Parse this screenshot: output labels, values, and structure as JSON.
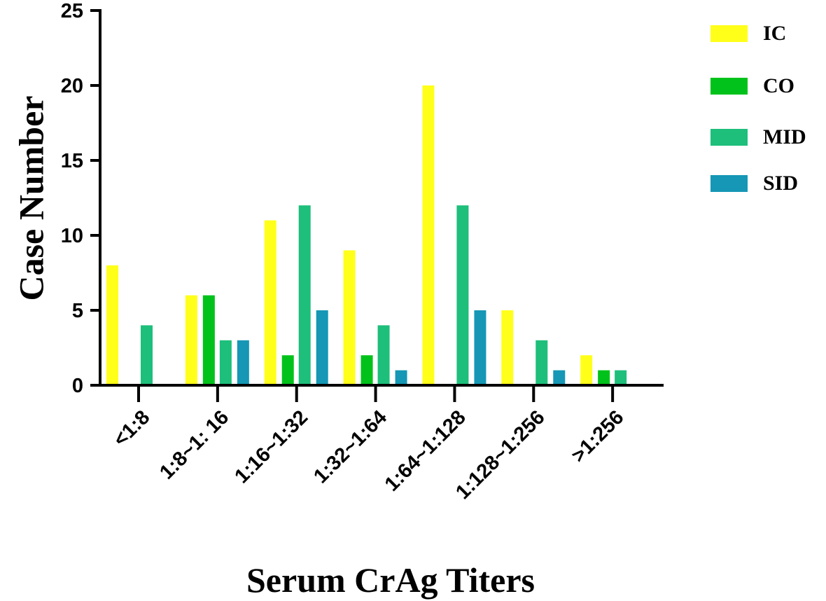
{
  "chart_data": {
    "type": "bar",
    "x_label": "Serum CrAg Titers",
    "y_label": "Case Number",
    "categories": [
      "<1:8",
      "1:8~1: 16",
      "1:16~1:32",
      "1:32~1:64",
      "1:64~1:128",
      "1:128~1:256",
      ">1:256"
    ],
    "series": [
      {
        "name": "IC",
        "color": "#ffff1a",
        "values": [
          8,
          6,
          11,
          9,
          20,
          5,
          2
        ]
      },
      {
        "name": "CO",
        "color": "#00c21a",
        "values": [
          0,
          6,
          2,
          2,
          0,
          0,
          1
        ]
      },
      {
        "name": "MID",
        "color": "#1dbf7a",
        "values": [
          4,
          3,
          12,
          4,
          12,
          3,
          1
        ]
      },
      {
        "name": "SID",
        "color": "#1597b5",
        "values": [
          0,
          3,
          5,
          1,
          5,
          1,
          0
        ]
      }
    ],
    "ylim": [
      0,
      25
    ],
    "yticks": [
      0,
      5,
      10,
      15,
      20,
      25
    ],
    "legend": "top-right"
  }
}
